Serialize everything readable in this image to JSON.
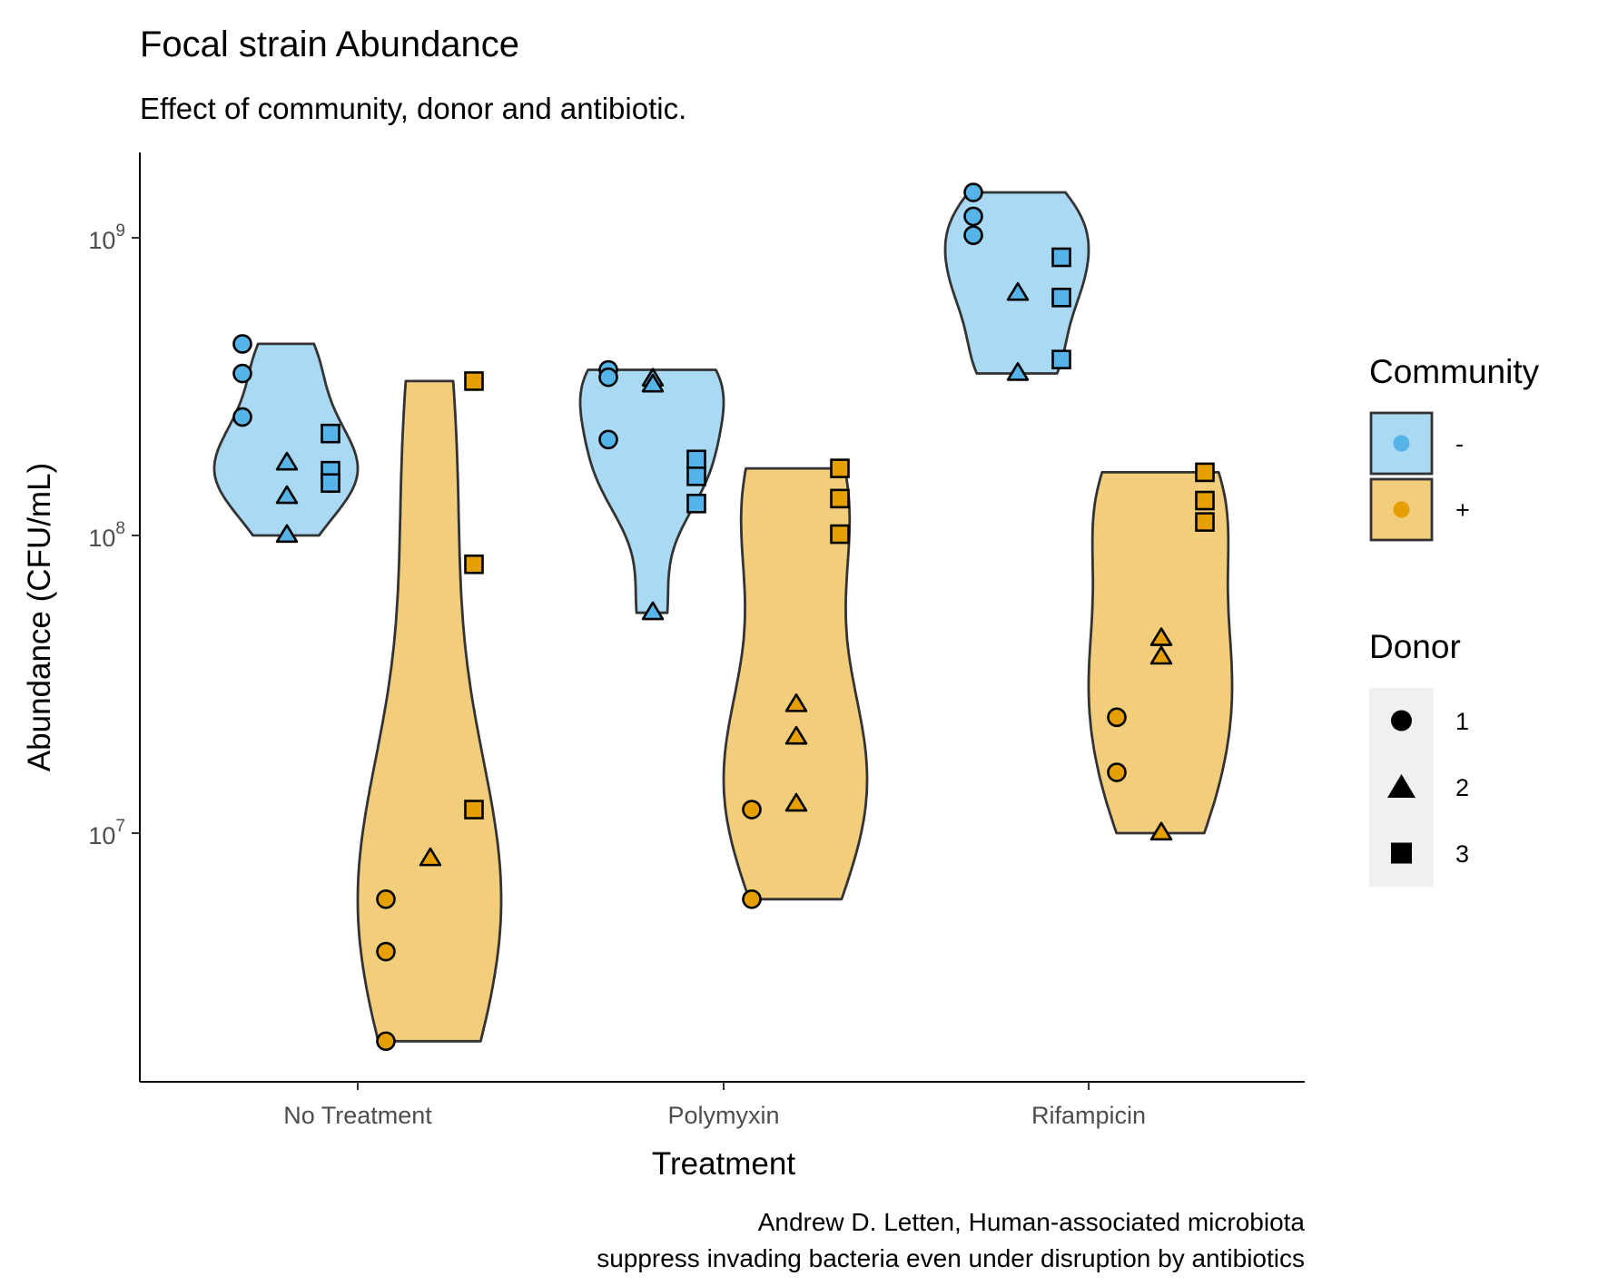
{
  "chart_data": {
    "type": "violin",
    "title": "Focal strain Abundance",
    "subtitle": "Effect of community, donor and antibiotic.",
    "xlabel": "Treatment",
    "ylabel": "Abundance (CFU/mL)",
    "y_scale": "log10",
    "ylim": [
      1600000,
      2000000000
    ],
    "y_ticks": [
      {
        "value": 10000000,
        "base": "10",
        "exp": "7"
      },
      {
        "value": 100000000,
        "base": "10",
        "exp": "8"
      },
      {
        "value": 1000000000,
        "base": "10",
        "exp": "9"
      }
    ],
    "categories": [
      "No Treatment",
      "Polymyxin",
      "Rifampicin"
    ],
    "caption": [
      "Andrew D. Letten, Human-associated microbiota",
      "suppress invading bacteria even under disruption by antibiotics"
    ],
    "grid": false,
    "legend_position": "right",
    "community_legend": {
      "title": "Community",
      "entries": [
        {
          "label": "-",
          "fill": "#56B4E9",
          "violin_fill": "#AAD9F3"
        },
        {
          "label": "+",
          "fill": "#E69F00",
          "violin_fill": "#F1CD7C"
        }
      ]
    },
    "donor_legend": {
      "title": "Donor",
      "entries": [
        {
          "label": "1",
          "shape": "circle"
        },
        {
          "label": "2",
          "shape": "triangle"
        },
        {
          "label": "3",
          "shape": "square"
        }
      ]
    },
    "series": [
      {
        "treatment": "No Treatment",
        "community": "-",
        "points": [
          {
            "donor": 1,
            "value": 440000000
          },
          {
            "donor": 1,
            "value": 350000000
          },
          {
            "donor": 1,
            "value": 250000000
          },
          {
            "donor": 2,
            "value": 175000000
          },
          {
            "donor": 2,
            "value": 135000000
          },
          {
            "donor": 2,
            "value": 100000000
          },
          {
            "donor": 3,
            "value": 220000000
          },
          {
            "donor": 3,
            "value": 165000000
          },
          {
            "donor": 3,
            "value": 150000000
          }
        ]
      },
      {
        "treatment": "No Treatment",
        "community": "+",
        "points": [
          {
            "donor": 1,
            "value": 6000000
          },
          {
            "donor": 1,
            "value": 4000000
          },
          {
            "donor": 1,
            "value": 2000000
          },
          {
            "donor": 2,
            "value": 8200000
          },
          {
            "donor": 3,
            "value": 330000000
          },
          {
            "donor": 3,
            "value": 80000000
          },
          {
            "donor": 3,
            "value": 12000000
          }
        ]
      },
      {
        "treatment": "Polymyxin",
        "community": "-",
        "points": [
          {
            "donor": 1,
            "value": 360000000
          },
          {
            "donor": 1,
            "value": 340000000
          },
          {
            "donor": 1,
            "value": 210000000
          },
          {
            "donor": 2,
            "value": 335000000
          },
          {
            "donor": 2,
            "value": 320000000
          },
          {
            "donor": 2,
            "value": 55000000
          },
          {
            "donor": 3,
            "value": 180000000
          },
          {
            "donor": 3,
            "value": 158000000
          },
          {
            "donor": 3,
            "value": 128000000
          }
        ]
      },
      {
        "treatment": "Polymyxin",
        "community": "+",
        "points": [
          {
            "donor": 1,
            "value": 12000000
          },
          {
            "donor": 1,
            "value": 6000000
          },
          {
            "donor": 2,
            "value": 27000000
          },
          {
            "donor": 2,
            "value": 21000000
          },
          {
            "donor": 2,
            "value": 12500000
          },
          {
            "donor": 3,
            "value": 168000000
          },
          {
            "donor": 3,
            "value": 133000000
          },
          {
            "donor": 3,
            "value": 101000000
          }
        ]
      },
      {
        "treatment": "Rifampicin",
        "community": "-",
        "points": [
          {
            "donor": 1,
            "value": 1420000000
          },
          {
            "donor": 1,
            "value": 1180000000
          },
          {
            "donor": 1,
            "value": 1020000000
          },
          {
            "donor": 2,
            "value": 650000000
          },
          {
            "donor": 2,
            "value": 350000000
          },
          {
            "donor": 3,
            "value": 860000000
          },
          {
            "donor": 3,
            "value": 630000000
          },
          {
            "donor": 3,
            "value": 390000000
          }
        ]
      },
      {
        "treatment": "Rifampicin",
        "community": "+",
        "points": [
          {
            "donor": 1,
            "value": 24500000
          },
          {
            "donor": 1,
            "value": 16000000
          },
          {
            "donor": 2,
            "value": 45000000
          },
          {
            "donor": 2,
            "value": 39000000
          },
          {
            "donor": 2,
            "value": 10000000
          },
          {
            "donor": 3,
            "value": 163000000
          },
          {
            "donor": 3,
            "value": 131000000
          },
          {
            "donor": 3,
            "value": 111000000
          }
        ]
      }
    ]
  }
}
